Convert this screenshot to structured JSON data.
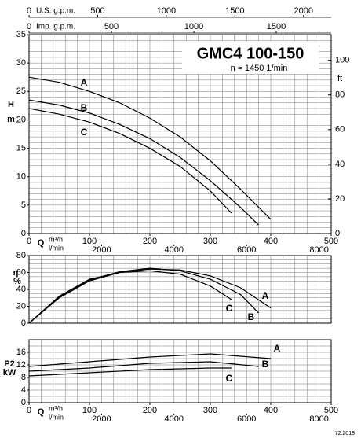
{
  "chart_data": [
    {
      "type": "line",
      "title": "GMC4 100-150",
      "subtitle": "n ≈ 1450 1/min",
      "ylabel": [
        "H",
        "m"
      ],
      "y2label": "ft",
      "xlabel": "Q",
      "xunit": "m³/h",
      "xlim": [
        0,
        500
      ],
      "xticks": [
        0,
        100,
        200,
        300,
        400,
        500
      ],
      "ylim": [
        0,
        35
      ],
      "yticks": [
        0,
        5,
        10,
        15,
        20,
        25,
        30,
        35
      ],
      "y2lim": [
        0,
        114.83
      ],
      "y2ticks": [
        0,
        20,
        40,
        60,
        80,
        100
      ],
      "grid_step": {
        "x": 20,
        "y": 1
      },
      "x2": {
        "label": "l/min",
        "lim": [
          0,
          8333.3
        ],
        "ticks": [
          2000,
          4000,
          6000,
          8000
        ]
      },
      "top_axes": [
        {
          "label": "U.S. g.p.m.",
          "lim": [
            0,
            2201.5
          ],
          "ticks": [
            0,
            500,
            1000,
            1500,
            2000
          ]
        },
        {
          "label": "Imp. g.p.m.",
          "lim": [
            0,
            1833.3
          ],
          "ticks": [
            0,
            500,
            1000,
            1500
          ]
        }
      ],
      "series": [
        {
          "name": "A",
          "color": "#000000",
          "x": [
            0,
            50,
            100,
            150,
            200,
            250,
            300,
            350,
            400
          ],
          "values": [
            27.5,
            26.6,
            25,
            23,
            20.3,
            17,
            12.8,
            7.8,
            2.5
          ]
        },
        {
          "name": "B",
          "color": "#000000",
          "x": [
            0,
            50,
            100,
            150,
            200,
            250,
            300,
            350,
            380
          ],
          "values": [
            23.5,
            22.6,
            21.2,
            19.2,
            16.7,
            13.4,
            9.3,
            4.6,
            1.5
          ]
        },
        {
          "name": "C",
          "color": "#000000",
          "x": [
            0,
            50,
            100,
            150,
            200,
            250,
            300,
            335
          ],
          "values": [
            22,
            21,
            19.6,
            17.6,
            15,
            11.8,
            7.5,
            3.6
          ]
        }
      ]
    },
    {
      "type": "line",
      "ylabel": [
        "η",
        "%"
      ],
      "xlim": [
        0,
        500
      ],
      "ylim": [
        0,
        80
      ],
      "yticks": [
        0,
        20,
        40,
        60,
        80
      ],
      "grid_step": {
        "x": 20,
        "y": 5
      },
      "series": [
        {
          "name": "A",
          "color": "#000000",
          "x": [
            0,
            50,
            100,
            150,
            200,
            250,
            300,
            350,
            400
          ],
          "values": [
            0,
            30,
            50,
            60,
            64,
            63,
            56,
            42,
            18
          ]
        },
        {
          "name": "B",
          "color": "#000000",
          "x": [
            0,
            50,
            100,
            150,
            200,
            250,
            300,
            350,
            380
          ],
          "values": [
            0,
            31,
            51,
            61,
            65,
            62,
            52,
            34,
            12
          ]
        },
        {
          "name": "C",
          "color": "#000000",
          "x": [
            0,
            50,
            100,
            150,
            200,
            250,
            300,
            335
          ],
          "values": [
            0,
            32,
            52,
            60,
            62,
            58,
            44,
            28
          ]
        }
      ]
    },
    {
      "type": "line",
      "ylabel": [
        "P2",
        "kW"
      ],
      "xlabel": "Q",
      "xunit": "m³/h",
      "xlim": [
        0,
        500
      ],
      "xticks": [
        0,
        100,
        200,
        300,
        400,
        500
      ],
      "ylim": [
        0,
        20
      ],
      "yticks": [
        0,
        4,
        8,
        12,
        16
      ],
      "grid_step": {
        "x": 20,
        "y": 2
      },
      "x2": {
        "label": "l/min",
        "lim": [
          0,
          8333.3
        ],
        "ticks": [
          2000,
          4000,
          6000,
          8000
        ]
      },
      "series": [
        {
          "name": "A",
          "color": "#000000",
          "x": [
            0,
            100,
            200,
            300,
            400
          ],
          "values": [
            11.5,
            13,
            14.5,
            15.5,
            14
          ]
        },
        {
          "name": "B",
          "color": "#000000",
          "x": [
            0,
            100,
            200,
            300,
            380
          ],
          "values": [
            10,
            11,
            12.5,
            13,
            11.5
          ]
        },
        {
          "name": "C",
          "color": "#000000",
          "x": [
            0,
            100,
            200,
            300,
            335
          ],
          "values": [
            8.5,
            9.5,
            10.5,
            11,
            11
          ]
        }
      ]
    }
  ],
  "footer": "72.2018"
}
